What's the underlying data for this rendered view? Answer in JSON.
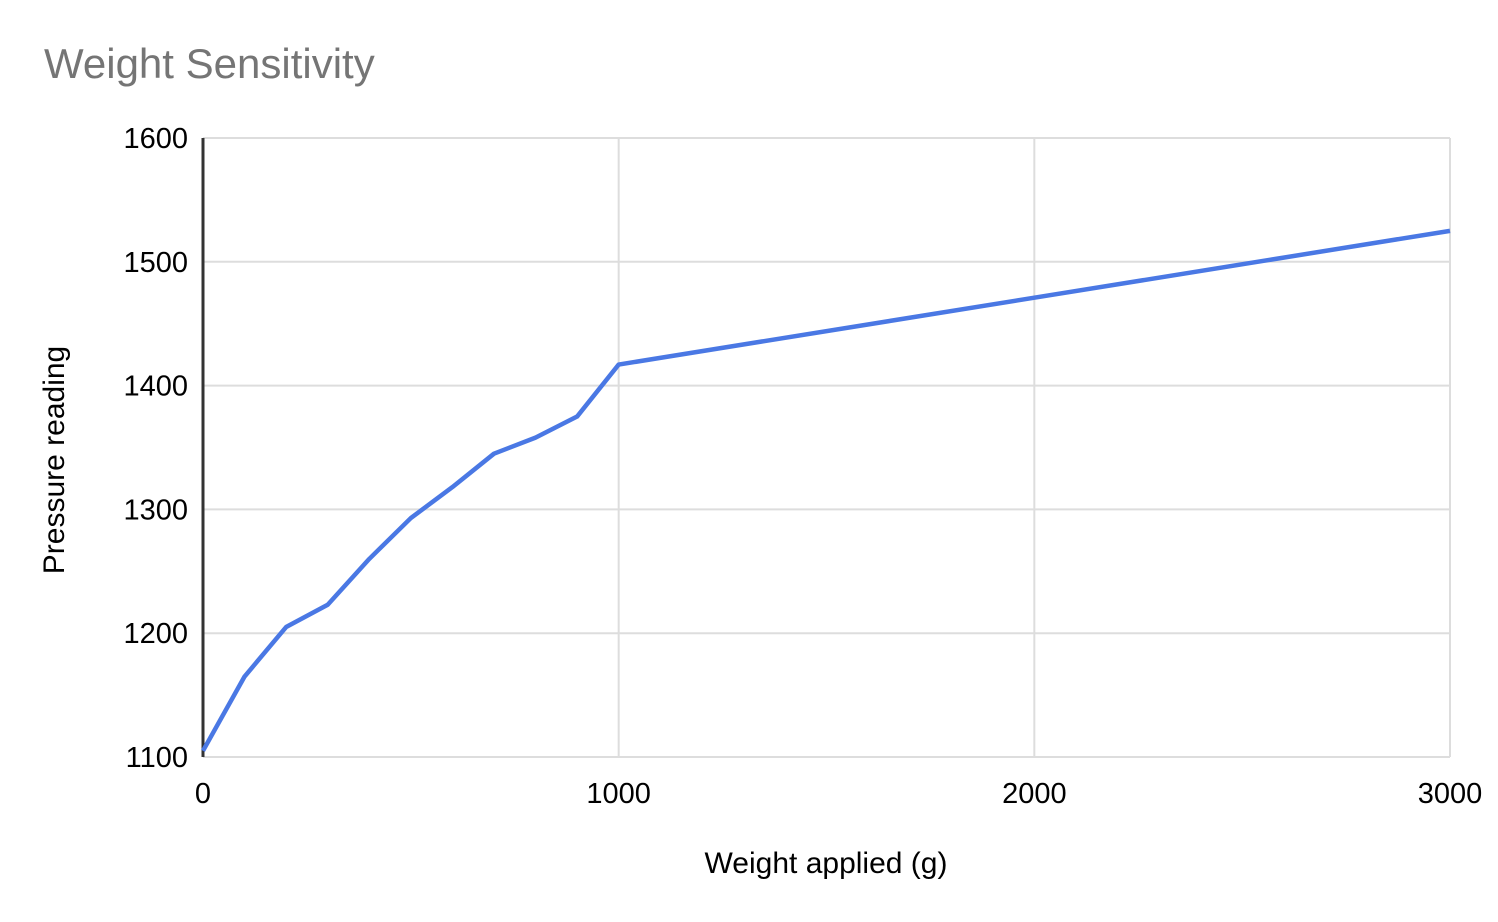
{
  "chart": {
    "title": "Weight Sensitivity",
    "x_axis_title": "Weight applied (g)",
    "y_axis_title": "Pressure reading",
    "colors": {
      "title_text": "#757575",
      "series_line": "#4a78e4",
      "gridline": "#dddddd",
      "axis_line": "#333333",
      "tick_label": "#000000",
      "background": "#ffffff"
    }
  },
  "chart_data": {
    "type": "line",
    "title": "Weight Sensitivity",
    "xlabel": "Weight applied (g)",
    "ylabel": "Pressure reading",
    "x": [
      0,
      100,
      200,
      300,
      400,
      500,
      600,
      700,
      800,
      900,
      1000,
      2000,
      3000
    ],
    "y": [
      1105,
      1165,
      1205,
      1223,
      1260,
      1293,
      1318,
      1345,
      1358,
      1375,
      1417,
      1471,
      1525
    ],
    "xlim": [
      0,
      3000
    ],
    "ylim": [
      1100,
      1600
    ],
    "x_ticks": [
      0,
      1000,
      2000,
      3000
    ],
    "y_ticks": [
      1100,
      1200,
      1300,
      1400,
      1500,
      1600
    ],
    "grid": true,
    "legend": false,
    "series_name": "Pressure reading"
  }
}
